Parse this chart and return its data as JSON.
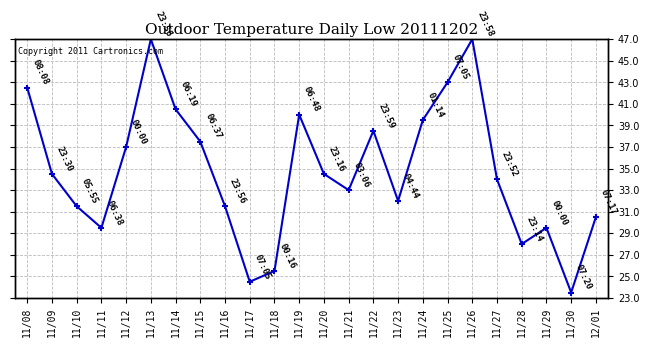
{
  "title": "Outdoor Temperature Daily Low 20111202",
  "copyright": "Copyright 2011 Cartronics.com",
  "dates": [
    "11/08",
    "11/09",
    "11/10",
    "11/11",
    "11/12",
    "11/13",
    "11/14",
    "11/15",
    "11/16",
    "11/17",
    "11/18",
    "11/19",
    "11/20",
    "11/21",
    "11/22",
    "11/23",
    "11/24",
    "11/25",
    "11/26",
    "11/27",
    "11/28",
    "11/29",
    "11/30",
    "12/01"
  ],
  "times": [
    "08:08",
    "23:30",
    "05:55",
    "06:38",
    "00:00",
    "23:56",
    "06:19",
    "06:37",
    "23:56",
    "07:05",
    "00:16",
    "06:48",
    "23:16",
    "03:06",
    "23:59",
    "04:44",
    "01:14",
    "07:05",
    "23:58",
    "23:52",
    "23:14",
    "00:00",
    "07:20",
    "07:17"
  ],
  "values": [
    42.5,
    34.5,
    31.5,
    29.5,
    37.0,
    47.0,
    40.5,
    37.5,
    31.5,
    24.5,
    25.5,
    40.0,
    34.5,
    33.0,
    38.5,
    32.0,
    39.5,
    43.0,
    47.0,
    34.0,
    28.0,
    29.5,
    23.5,
    30.5
  ],
  "ylim": [
    23.0,
    47.0
  ],
  "yticks": [
    23.0,
    25.0,
    27.0,
    29.0,
    31.0,
    33.0,
    35.0,
    37.0,
    39.0,
    41.0,
    43.0,
    45.0,
    47.0
  ],
  "line_color": "#0000cc",
  "marker_color": "#0000cc",
  "bg_color": "#ffffff",
  "grid_color": "#bbbbbb",
  "title_fontsize": 11,
  "label_fontsize": 6.5,
  "tick_fontsize": 7,
  "copyright_fontsize": 6
}
